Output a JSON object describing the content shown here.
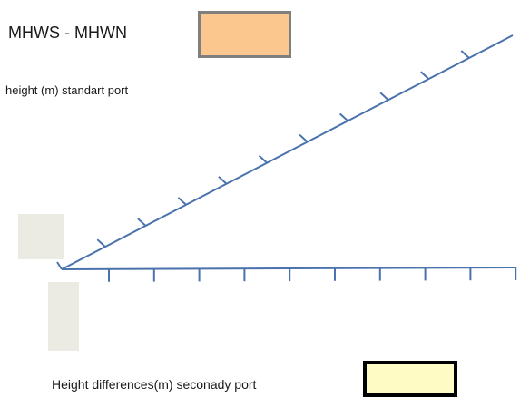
{
  "diagram": {
    "title": "MHWS - MHWN",
    "upper_axis_label": "height (m) standart port",
    "lower_axis_label": "Height differences(m) seconady port",
    "upper_axis_ticks": 10,
    "lower_axis_ticks": 10
  },
  "colors": {
    "axis_line": "#4a72ad",
    "mhws_box_fill": "#fcc78f",
    "mhws_box_border": "#7f7f7f",
    "secondary_box_fill": "#fffbc4",
    "secondary_box_border": "#000000",
    "placeholder_fill": "#ecebe3"
  }
}
